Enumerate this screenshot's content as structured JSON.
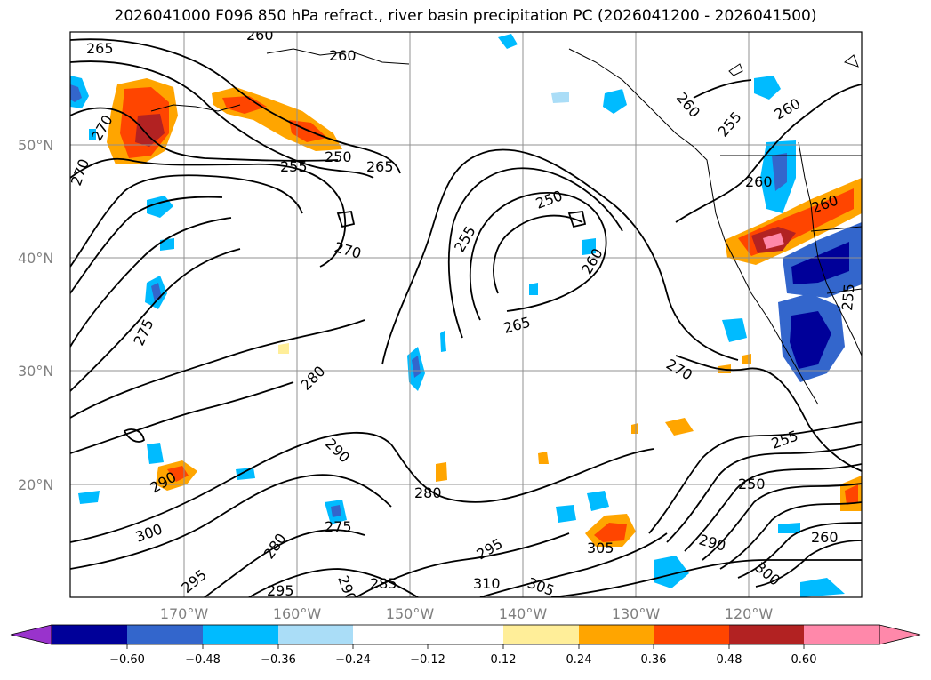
{
  "title": "2026041000 F096 850 hPa refract., river basin precipitation PC (2026041200 - 2026041500)",
  "map": {
    "lat_labels": [
      "50°N",
      "40°N",
      "30°N",
      "20°N"
    ],
    "lon_labels": [
      "170°W",
      "160°W",
      "150°W",
      "140°W",
      "130°W",
      "120°W"
    ],
    "contour_labels": [
      "260",
      "265",
      "260",
      "270",
      "270",
      "255",
      "250",
      "265",
      "260",
      "255",
      "260",
      "260",
      "270",
      "250",
      "255",
      "260",
      "260",
      "255",
      "275",
      "280",
      "265",
      "270",
      "290",
      "290",
      "280",
      "255",
      "250",
      "300",
      "275",
      "280",
      "295",
      "260",
      "290",
      "305",
      "295",
      "285",
      "310",
      "305",
      "290",
      "300",
      "295"
    ]
  },
  "colorbar": {
    "ticks": [
      "−0.60",
      "−0.48",
      "−0.36",
      "−0.24",
      "−0.12",
      "0.12",
      "0.24",
      "0.36",
      "0.48",
      "0.60"
    ],
    "colors": {
      "under": "#9933cc",
      "n060": "#000099",
      "n048": "#3366cc",
      "n036": "#00bbff",
      "n024": "#aaddf7",
      "neutral": "#ffffff",
      "p012": "#ffee99",
      "p024": "#ffa500",
      "p036": "#ff4500",
      "p048": "#b22222",
      "over": "#ff88aa"
    }
  }
}
